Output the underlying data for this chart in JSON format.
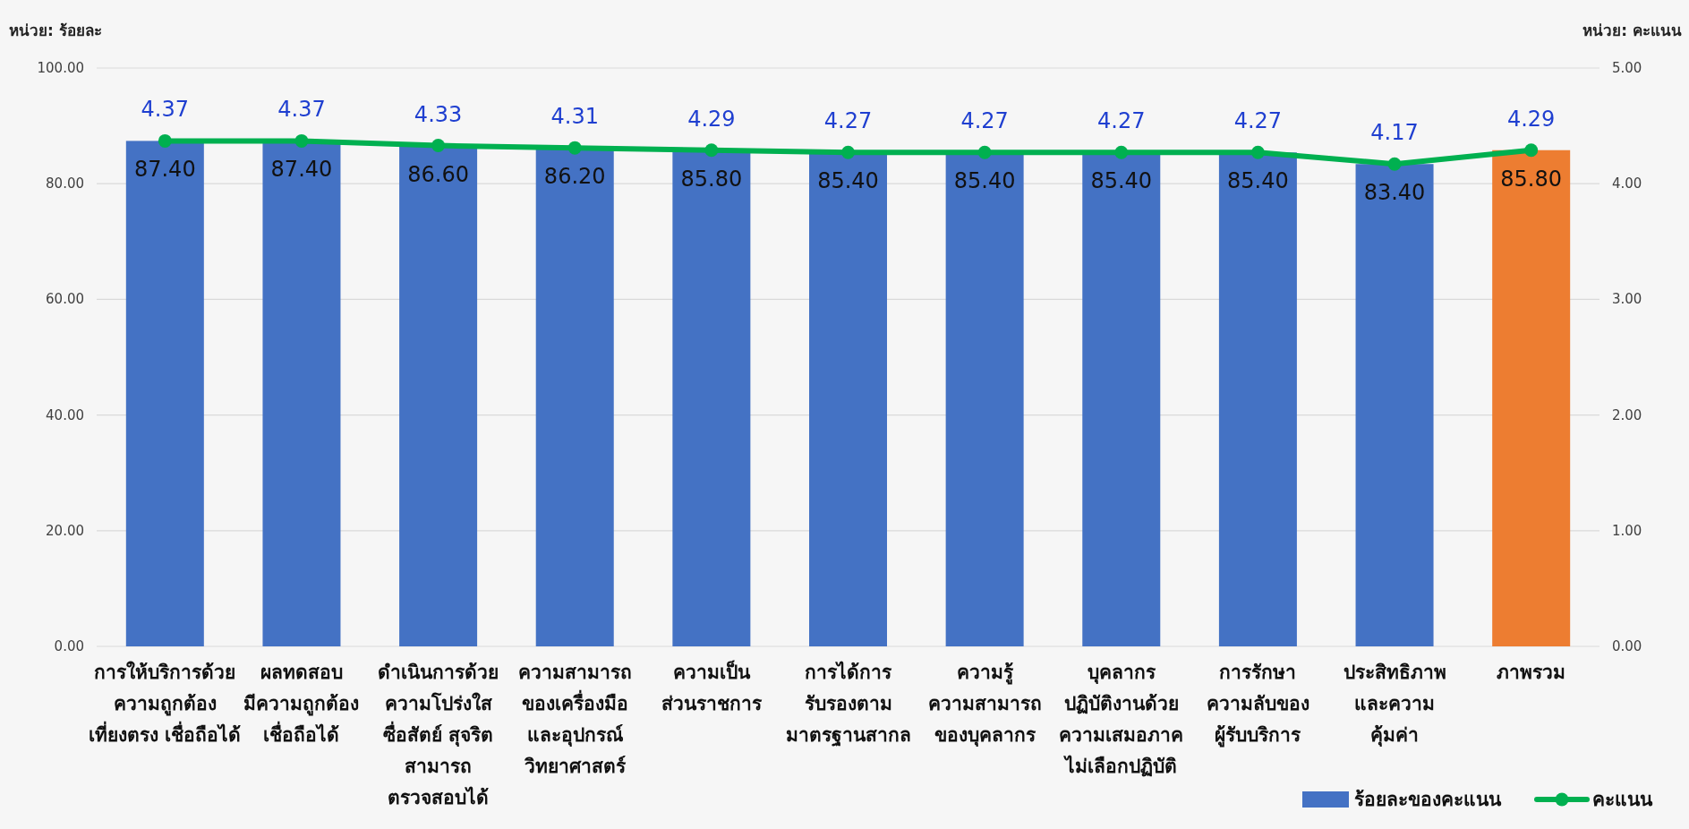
{
  "chart_data": {
    "type": "bar",
    "ylabel": "หน่วย: ร้อยละ",
    "y2label": "หน่วย: คะแนน",
    "categories": [
      "การให้บริการด้วย\nความถูกต้อง\nเที่ยงตรง เชื่อถือได้",
      "ผลทดสอบ\nมีความถูกต้อง\nเชื่อถือได้",
      "ดำเนินการด้วย\nความโปร่งใส\nซื่อสัตย์ สุจริต\nสามารถ\nตรวจสอบได้",
      "ความสามารถ\nของเครื่องมือ\nและอุปกรณ์\nวิทยาศาสตร์",
      "ความเป็น\nส่วนราชการ",
      "การได้การ\nรับรองตาม\nมาตรฐานสากล",
      "ความรู้\nความสามารถ\nของบุคลากร",
      "บุคลากร\nปฏิบัติงานด้วย\nความเสมอภาค\nไม่เลือกปฏิบัติ",
      "การรักษา\nความลับของ\nผู้รับบริการ",
      "ประสิทธิภาพ\nและความ\nคุ้มค่า",
      "ภาพรวม"
    ],
    "series": [
      {
        "name": "ร้อยละของคะแนน",
        "color": "#4472c4",
        "colors": [
          "#4472c4",
          "#4472c4",
          "#4472c4",
          "#4472c4",
          "#4472c4",
          "#4472c4",
          "#4472c4",
          "#4472c4",
          "#4472c4",
          "#4472c4",
          "#ed7d31"
        ],
        "values": [
          87.4,
          87.4,
          86.6,
          86.2,
          85.8,
          85.4,
          85.4,
          85.4,
          85.4,
          83.4,
          85.8
        ],
        "value_labels": [
          "87.40",
          "87.40",
          "86.60",
          "86.20",
          "85.80",
          "85.40",
          "85.40",
          "85.40",
          "85.40",
          "83.40",
          "85.80"
        ]
      },
      {
        "name": "คะแนน",
        "type": "line",
        "axis": "y2",
        "color": "#00b050",
        "marker": "circle",
        "values": [
          4.37,
          4.37,
          4.33,
          4.31,
          4.29,
          4.27,
          4.27,
          4.27,
          4.27,
          4.17,
          4.29
        ],
        "value_labels": [
          "4.37",
          "4.37",
          "4.33",
          "4.31",
          "4.29",
          "4.27",
          "4.27",
          "4.27",
          "4.27",
          "4.17",
          "4.29"
        ]
      }
    ],
    "ylim": [
      0,
      100
    ],
    "yticks": [
      {
        "value": 0,
        "label": "0.00"
      },
      {
        "value": 20,
        "label": "20.00"
      },
      {
        "value": 40,
        "label": "40.00"
      },
      {
        "value": 60,
        "label": "60.00"
      },
      {
        "value": 80,
        "label": "80.00"
      },
      {
        "value": 100,
        "label": "100.00"
      }
    ],
    "y2lim": [
      0,
      5
    ],
    "y2ticks": [
      {
        "value": 0,
        "label": "0.00"
      },
      {
        "value": 1,
        "label": "1.00"
      },
      {
        "value": 2,
        "label": "2.00"
      },
      {
        "value": 3,
        "label": "3.00"
      },
      {
        "value": 4,
        "label": "4.00"
      },
      {
        "value": 5,
        "label": "5.00"
      }
    ],
    "grid": "y",
    "legend": "bottom right"
  }
}
